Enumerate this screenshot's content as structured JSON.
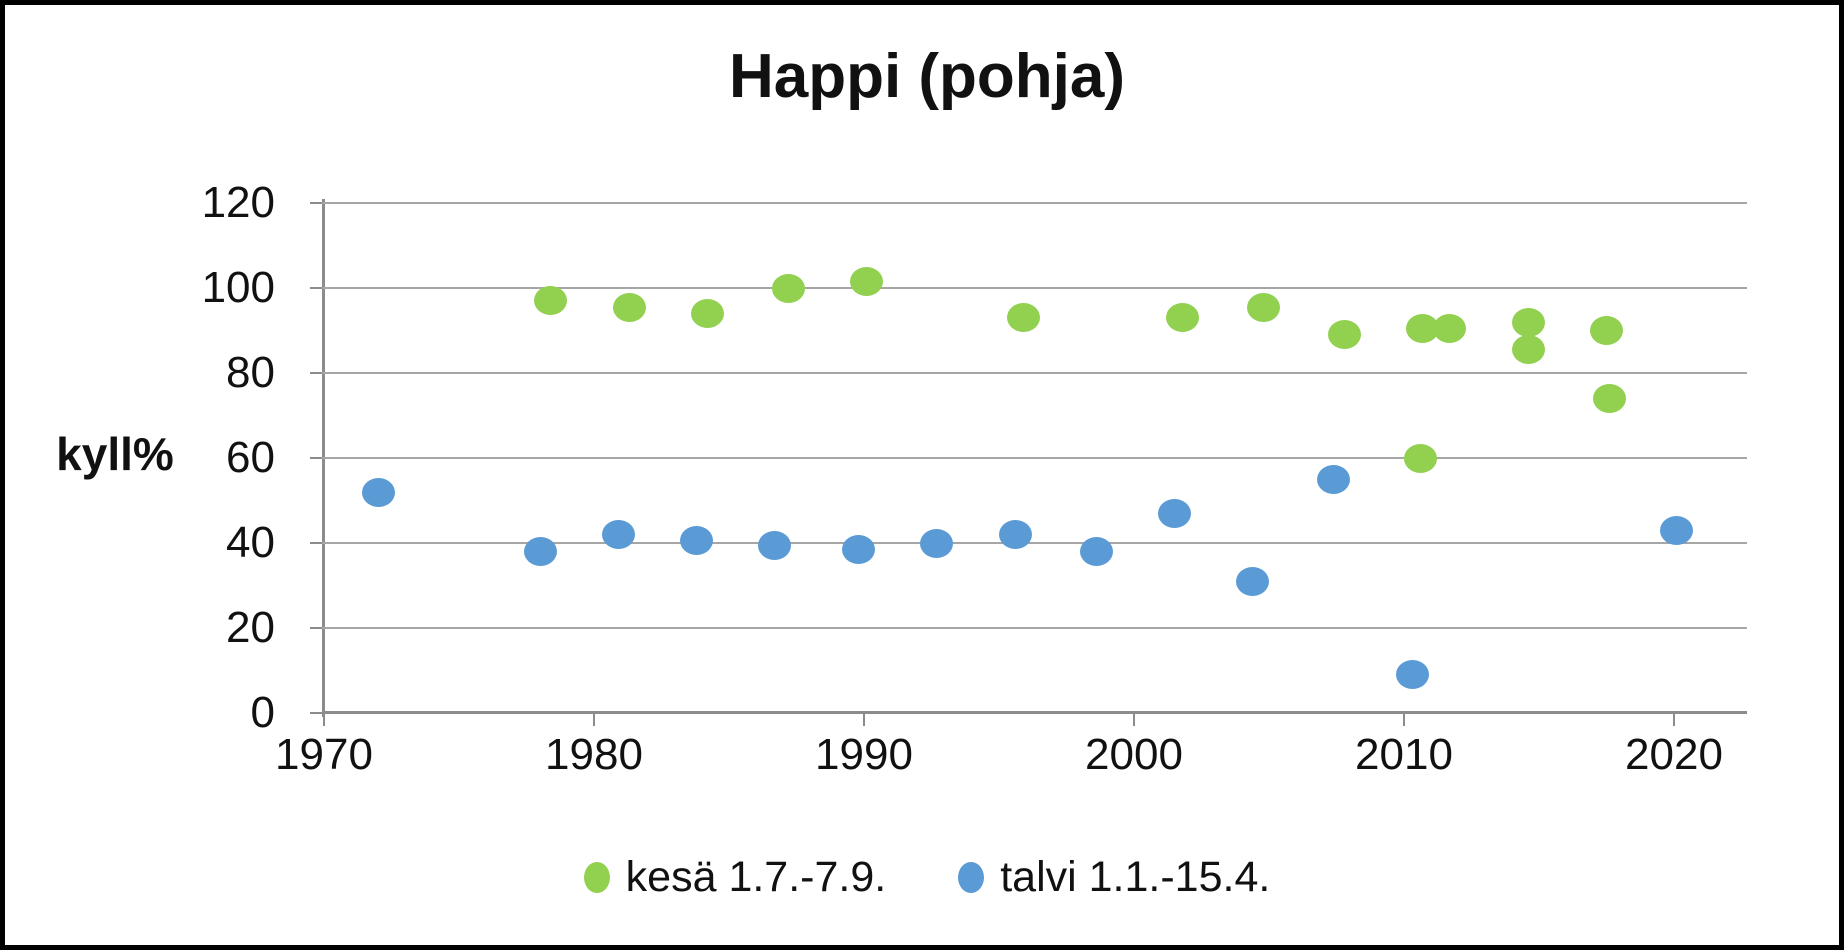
{
  "chart_data": {
    "type": "scatter",
    "title": "Happi (pohja)",
    "ylabel": "kyll%",
    "xlabel": "",
    "x_ticks": [
      1970,
      1980,
      1990,
      2000,
      2010,
      2020
    ],
    "y_ticks": [
      0,
      20,
      40,
      60,
      80,
      100,
      120
    ],
    "xlim": [
      1970,
      2022.7
    ],
    "ylim": [
      0,
      120
    ],
    "grid": "horizontal-only",
    "legend_position": "bottom-center",
    "series": [
      {
        "name": "kesä 1.7.-7.9.",
        "color": "#92d050",
        "points": [
          [
            1978.4,
            97
          ],
          [
            1981.3,
            95.5
          ],
          [
            1984.2,
            94
          ],
          [
            1987.2,
            100
          ],
          [
            1990.1,
            101.5
          ],
          [
            1995.9,
            93
          ],
          [
            2001.8,
            93
          ],
          [
            2004.8,
            95.5
          ],
          [
            2007.8,
            89
          ],
          [
            2010.6,
            60
          ],
          [
            2010.7,
            90.5
          ],
          [
            2011.7,
            90.5
          ],
          [
            2014.6,
            92
          ],
          [
            2014.6,
            85.5
          ],
          [
            2017.5,
            90
          ],
          [
            2017.6,
            74
          ]
        ]
      },
      {
        "name": "talvi 1.1.-15.4.",
        "color": "#5b9bd5",
        "points": [
          [
            1972.0,
            52
          ],
          [
            1978.0,
            38
          ],
          [
            1980.9,
            42
          ],
          [
            1983.8,
            40.5
          ],
          [
            1986.7,
            39.5
          ],
          [
            1989.8,
            38.5
          ],
          [
            1992.7,
            40
          ],
          [
            1995.6,
            42
          ],
          [
            1998.6,
            38
          ],
          [
            2001.5,
            47
          ],
          [
            2004.4,
            31
          ],
          [
            2007.4,
            55
          ],
          [
            2010.3,
            9
          ],
          [
            2020.1,
            43
          ]
        ]
      }
    ],
    "colors": {
      "grid": "#a6a6a6",
      "axis": "#8c8c8c",
      "text": "#111111",
      "frame": "#000000"
    }
  }
}
